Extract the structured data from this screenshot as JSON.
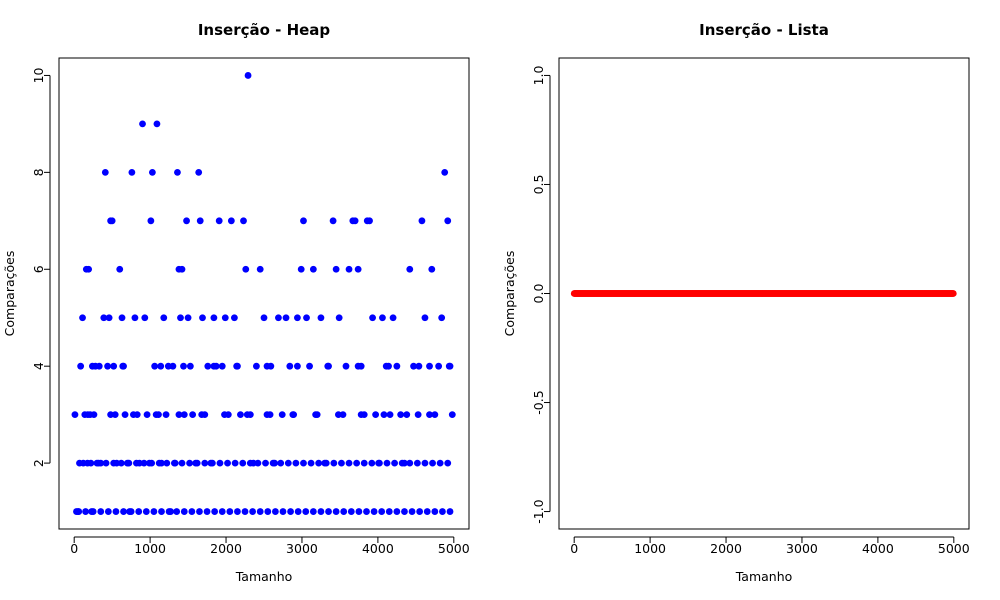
{
  "chart_data": [
    {
      "type": "scatter",
      "title": "Inserção - Heap",
      "xlabel": "Tamanho",
      "ylabel": "Comparações",
      "xlim": [
        0,
        5000
      ],
      "ylim": [
        1,
        10
      ],
      "xticks": [
        "0",
        "1000",
        "2000",
        "3000",
        "4000",
        "5000"
      ],
      "yticks": [
        "2",
        "4",
        "6",
        "8",
        "10"
      ],
      "point_color": "#0000ff",
      "grid": false,
      "points": [
        [
          10,
          3
        ],
        [
          30,
          1
        ],
        [
          50,
          1
        ],
        [
          70,
          2
        ],
        [
          85,
          4
        ],
        [
          110,
          5
        ],
        [
          140,
          3
        ],
        [
          160,
          6
        ],
        [
          175,
          2
        ],
        [
          190,
          6
        ],
        [
          210,
          3
        ],
        [
          230,
          1
        ],
        [
          260,
          3
        ],
        [
          280,
          4
        ],
        [
          300,
          2
        ],
        [
          330,
          4
        ],
        [
          350,
          2
        ],
        [
          390,
          5
        ],
        [
          410,
          8
        ],
        [
          440,
          4
        ],
        [
          460,
          5
        ],
        [
          480,
          7
        ],
        [
          500,
          7
        ],
        [
          520,
          4
        ],
        [
          540,
          3
        ],
        [
          560,
          2
        ],
        [
          600,
          6
        ],
        [
          630,
          5
        ],
        [
          650,
          4
        ],
        [
          670,
          3
        ],
        [
          700,
          2
        ],
        [
          730,
          1
        ],
        [
          760,
          8
        ],
        [
          800,
          5
        ],
        [
          830,
          3
        ],
        [
          860,
          2
        ],
        [
          900,
          9
        ],
        [
          930,
          5
        ],
        [
          960,
          3
        ],
        [
          990,
          2
        ],
        [
          1010,
          7
        ],
        [
          1030,
          8
        ],
        [
          1060,
          4
        ],
        [
          1090,
          9
        ],
        [
          1110,
          3
        ],
        [
          1150,
          2
        ],
        [
          1180,
          5
        ],
        [
          1210,
          3
        ],
        [
          1240,
          4
        ],
        [
          1270,
          1
        ],
        [
          1300,
          4
        ],
        [
          1330,
          2
        ],
        [
          1360,
          8
        ],
        [
          1380,
          6
        ],
        [
          1400,
          5
        ],
        [
          1420,
          6
        ],
        [
          1450,
          3
        ],
        [
          1480,
          7
        ],
        [
          1500,
          5
        ],
        [
          1530,
          4
        ],
        [
          1560,
          3
        ],
        [
          1600,
          2
        ],
        [
          1640,
          8
        ],
        [
          1660,
          7
        ],
        [
          1690,
          5
        ],
        [
          1720,
          3
        ],
        [
          1760,
          4
        ],
        [
          1800,
          2
        ],
        [
          1840,
          5
        ],
        [
          1870,
          4
        ],
        [
          1910,
          7
        ],
        [
          1950,
          4
        ],
        [
          1990,
          5
        ],
        [
          2030,
          3
        ],
        [
          2070,
          7
        ],
        [
          2110,
          5
        ],
        [
          2150,
          4
        ],
        [
          2190,
          3
        ],
        [
          2230,
          7
        ],
        [
          2260,
          6
        ],
        [
          2290,
          10
        ],
        [
          2320,
          3
        ],
        [
          2360,
          2
        ],
        [
          2400,
          4
        ],
        [
          2450,
          6
        ],
        [
          2500,
          5
        ],
        [
          2540,
          3
        ],
        [
          2590,
          4
        ],
        [
          2640,
          2
        ],
        [
          2690,
          5
        ],
        [
          2740,
          3
        ],
        [
          2790,
          5
        ],
        [
          2840,
          4
        ],
        [
          2890,
          3
        ],
        [
          2940,
          5
        ],
        [
          2990,
          6
        ],
        [
          3020,
          7
        ],
        [
          3060,
          5
        ],
        [
          3100,
          4
        ],
        [
          3150,
          6
        ],
        [
          3200,
          3
        ],
        [
          3250,
          5
        ],
        [
          3300,
          2
        ],
        [
          3350,
          4
        ],
        [
          3410,
          7
        ],
        [
          3450,
          6
        ],
        [
          3490,
          5
        ],
        [
          3540,
          3
        ],
        [
          3580,
          4
        ],
        [
          3620,
          6
        ],
        [
          3670,
          7
        ],
        [
          3700,
          7
        ],
        [
          3740,
          6
        ],
        [
          3780,
          4
        ],
        [
          3820,
          3
        ],
        [
          3860,
          7
        ],
        [
          3890,
          7
        ],
        [
          3930,
          5
        ],
        [
          3970,
          3
        ],
        [
          4010,
          2
        ],
        [
          4060,
          5
        ],
        [
          4110,
          4
        ],
        [
          4160,
          3
        ],
        [
          4200,
          5
        ],
        [
          4250,
          4
        ],
        [
          4300,
          3
        ],
        [
          4350,
          2
        ],
        [
          4420,
          6
        ],
        [
          4470,
          4
        ],
        [
          4530,
          3
        ],
        [
          4580,
          7
        ],
        [
          4620,
          5
        ],
        [
          4680,
          4
        ],
        [
          4710,
          6
        ],
        [
          4750,
          3
        ],
        [
          4800,
          4
        ],
        [
          4840,
          5
        ],
        [
          4880,
          8
        ],
        [
          4920,
          7
        ],
        [
          4950,
          4
        ],
        [
          4980,
          3
        ],
        [
          60,
          1
        ],
        [
          150,
          1
        ],
        [
          250,
          1
        ],
        [
          350,
          1
        ],
        [
          450,
          1
        ],
        [
          550,
          1
        ],
        [
          650,
          1
        ],
        [
          750,
          1
        ],
        [
          850,
          1
        ],
        [
          950,
          1
        ],
        [
          1050,
          1
        ],
        [
          1150,
          1
        ],
        [
          1250,
          1
        ],
        [
          1350,
          1
        ],
        [
          1450,
          1
        ],
        [
          1550,
          1
        ],
        [
          1650,
          1
        ],
        [
          1750,
          1
        ],
        [
          1850,
          1
        ],
        [
          1950,
          1
        ],
        [
          2050,
          1
        ],
        [
          2150,
          1
        ],
        [
          2250,
          1
        ],
        [
          2350,
          1
        ],
        [
          2450,
          1
        ],
        [
          2550,
          1
        ],
        [
          2650,
          1
        ],
        [
          2750,
          1
        ],
        [
          2850,
          1
        ],
        [
          2950,
          1
        ],
        [
          3050,
          1
        ],
        [
          3150,
          1
        ],
        [
          3250,
          1
        ],
        [
          3350,
          1
        ],
        [
          3450,
          1
        ],
        [
          3550,
          1
        ],
        [
          3650,
          1
        ],
        [
          3750,
          1
        ],
        [
          3850,
          1
        ],
        [
          3950,
          1
        ],
        [
          4050,
          1
        ],
        [
          4150,
          1
        ],
        [
          4250,
          1
        ],
        [
          4350,
          1
        ],
        [
          4450,
          1
        ],
        [
          4550,
          1
        ],
        [
          4650,
          1
        ],
        [
          4750,
          1
        ],
        [
          4850,
          1
        ],
        [
          4950,
          1
        ],
        [
          120,
          2
        ],
        [
          220,
          2
        ],
        [
          320,
          2
        ],
        [
          420,
          2
        ],
        [
          520,
          2
        ],
        [
          620,
          2
        ],
        [
          720,
          2
        ],
        [
          820,
          2
        ],
        [
          920,
          2
        ],
        [
          1020,
          2
        ],
        [
          1120,
          2
        ],
        [
          1220,
          2
        ],
        [
          1320,
          2
        ],
        [
          1420,
          2
        ],
        [
          1520,
          2
        ],
        [
          1620,
          2
        ],
        [
          1720,
          2
        ],
        [
          1820,
          2
        ],
        [
          1920,
          2
        ],
        [
          2020,
          2
        ],
        [
          2120,
          2
        ],
        [
          2220,
          2
        ],
        [
          2320,
          2
        ],
        [
          2420,
          2
        ],
        [
          2520,
          2
        ],
        [
          2620,
          2
        ],
        [
          2720,
          2
        ],
        [
          2820,
          2
        ],
        [
          2920,
          2
        ],
        [
          3020,
          2
        ],
        [
          3120,
          2
        ],
        [
          3220,
          2
        ],
        [
          3320,
          2
        ],
        [
          3420,
          2
        ],
        [
          3520,
          2
        ],
        [
          3620,
          2
        ],
        [
          3720,
          2
        ],
        [
          3820,
          2
        ],
        [
          3920,
          2
        ],
        [
          4020,
          2
        ],
        [
          4120,
          2
        ],
        [
          4220,
          2
        ],
        [
          4320,
          2
        ],
        [
          4420,
          2
        ],
        [
          4520,
          2
        ],
        [
          4620,
          2
        ],
        [
          4720,
          2
        ],
        [
          4820,
          2
        ],
        [
          4920,
          2
        ],
        [
          180,
          3
        ],
        [
          480,
          3
        ],
        [
          780,
          3
        ],
        [
          1080,
          3
        ],
        [
          1380,
          3
        ],
        [
          1680,
          3
        ],
        [
          1980,
          3
        ],
        [
          2280,
          3
        ],
        [
          2580,
          3
        ],
        [
          2880,
          3
        ],
        [
          3180,
          3
        ],
        [
          3480,
          3
        ],
        [
          3780,
          3
        ],
        [
          4080,
          3
        ],
        [
          4380,
          3
        ],
        [
          4680,
          3
        ],
        [
          240,
          4
        ],
        [
          640,
          4
        ],
        [
          1140,
          4
        ],
        [
          1440,
          4
        ],
        [
          1840,
          4
        ],
        [
          2140,
          4
        ],
        [
          2540,
          4
        ],
        [
          2940,
          4
        ],
        [
          3340,
          4
        ],
        [
          3740,
          4
        ],
        [
          4140,
          4
        ],
        [
          4540,
          4
        ],
        [
          4940,
          4
        ]
      ]
    },
    {
      "type": "scatter",
      "title": "Inserção - Lista",
      "xlabel": "Tamanho",
      "ylabel": "Comparações",
      "xlim": [
        0,
        5000
      ],
      "ylim": [
        -1,
        1
      ],
      "xticks": [
        "0",
        "1000",
        "2000",
        "3000",
        "4000",
        "5000"
      ],
      "yticks": [
        "-1.0",
        "-0.5",
        "0.0",
        "0.5",
        "1.0"
      ],
      "point_color": "#ff0000",
      "grid": false,
      "constant_y": 0,
      "x_range": [
        1,
        5000
      ]
    }
  ]
}
